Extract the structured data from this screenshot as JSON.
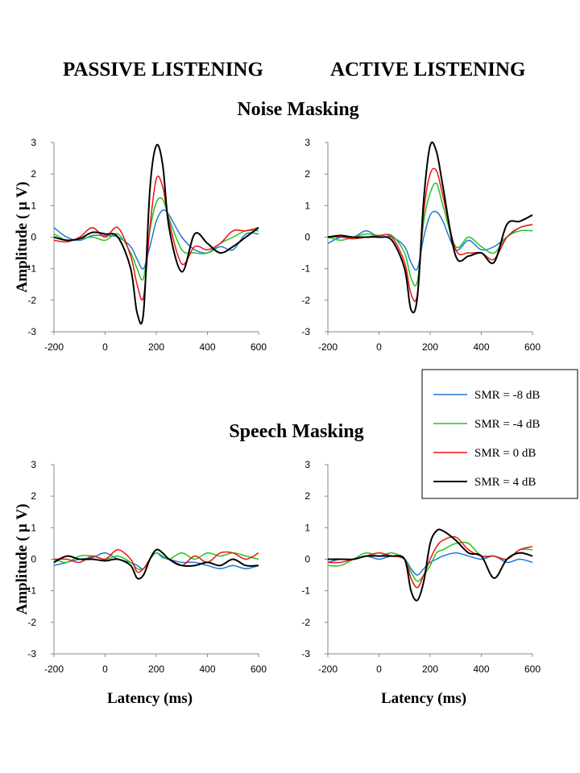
{
  "headings": {
    "passive": "PASSIVE LISTENING",
    "active": "ACTIVE LISTENING",
    "noise": "Noise Masking",
    "speech": "Speech Masking"
  },
  "axis": {
    "ylabel": "Amplitude ( μ V)",
    "xlabel": "Latency (ms)",
    "xticks": [
      -200,
      0,
      200,
      400,
      600
    ],
    "yticks": [
      3,
      2,
      1,
      0,
      -1,
      -2,
      -3
    ],
    "xlim": [
      -200,
      600
    ],
    "ylim": [
      -3,
      3
    ]
  },
  "legend": [
    {
      "label": "SMR = -8 dB",
      "color": "#1f77d4"
    },
    {
      "label": "SMR = -4 dB",
      "color": "#22c422"
    },
    {
      "label": "SMR = 0 dB",
      "color": "#ee1111"
    },
    {
      "label": "SMR = 4 dB",
      "color": "#000000"
    }
  ],
  "chart_data": [
    {
      "type": "line",
      "panel": "passive-noise",
      "x": [
        -200,
        -150,
        -100,
        -50,
        0,
        50,
        100,
        125,
        150,
        175,
        200,
        225,
        250,
        300,
        350,
        400,
        450,
        500,
        550,
        600
      ],
      "series": [
        {
          "name": "SMR = -8 dB",
          "values": [
            0.3,
            0,
            -0.1,
            0.05,
            0.05,
            0,
            -0.3,
            -0.7,
            -1.0,
            -0.3,
            0.5,
            0.85,
            0.7,
            0,
            -0.4,
            -0.5,
            -0.3,
            -0.4,
            0.1,
            0.1
          ]
        },
        {
          "name": "SMR = -4 dB",
          "values": [
            0.1,
            -0.1,
            -0.05,
            0,
            -0.1,
            0.1,
            -0.5,
            -1.0,
            -1.3,
            0.2,
            1.1,
            1.2,
            0.6,
            -0.4,
            -0.5,
            -0.5,
            -0.2,
            0,
            0.2,
            0.2
          ]
        },
        {
          "name": "SMR = 0 dB",
          "values": [
            -0.1,
            -0.15,
            0,
            0.3,
            0,
            0.3,
            -0.6,
            -1.5,
            -1.9,
            0.3,
            1.85,
            1.6,
            0.5,
            -0.85,
            -0.3,
            -0.4,
            -0.2,
            0.2,
            0.2,
            0.3
          ]
        },
        {
          "name": "SMR = 4 dB",
          "values": [
            0,
            -0.1,
            -0.05,
            0.15,
            0.1,
            0,
            -1.0,
            -2.4,
            -2.4,
            1.5,
            2.9,
            2.3,
            0.3,
            -1.1,
            0.1,
            -0.2,
            -0.5,
            -0.3,
            0,
            0.3
          ]
        }
      ]
    },
    {
      "type": "line",
      "panel": "active-noise",
      "x": [
        -200,
        -150,
        -100,
        -50,
        0,
        50,
        100,
        125,
        150,
        175,
        200,
        225,
        250,
        300,
        350,
        400,
        450,
        500,
        550,
        600
      ],
      "series": [
        {
          "name": "SMR = -8 dB",
          "values": [
            -0.2,
            0,
            0,
            0.2,
            0,
            0,
            -0.3,
            -0.8,
            -1.0,
            0,
            0.7,
            0.8,
            0.5,
            -0.4,
            -0.1,
            -0.4,
            -0.3,
            0,
            0.3,
            0.4
          ]
        },
        {
          "name": "SMR = -4 dB",
          "values": [
            0,
            -0.1,
            0,
            0.1,
            0.05,
            0.05,
            -0.5,
            -1.3,
            -1.4,
            0.5,
            1.4,
            1.7,
            1.0,
            -0.3,
            0,
            -0.3,
            -0.5,
            0,
            0.2,
            0.2
          ]
        },
        {
          "name": "SMR = 0 dB",
          "values": [
            0,
            0,
            -0.05,
            0,
            0.05,
            0,
            -0.8,
            -1.8,
            -1.8,
            0.8,
            2.0,
            2.1,
            1.3,
            -0.4,
            -0.5,
            -0.5,
            -0.7,
            0,
            0.3,
            0.4
          ]
        },
        {
          "name": "SMR = 4 dB",
          "values": [
            0,
            0.05,
            0,
            0,
            0,
            -0.1,
            -1.0,
            -2.3,
            -1.9,
            1.2,
            2.9,
            2.7,
            1.6,
            -0.6,
            -0.6,
            -0.5,
            -0.8,
            0.4,
            0.5,
            0.7
          ]
        }
      ]
    },
    {
      "type": "line",
      "panel": "passive-speech",
      "x": [
        -200,
        -150,
        -100,
        -50,
        0,
        50,
        100,
        125,
        150,
        175,
        200,
        225,
        250,
        300,
        350,
        400,
        450,
        500,
        550,
        600
      ],
      "series": [
        {
          "name": "SMR = -8 dB",
          "values": [
            -0.2,
            -0.1,
            0,
            0.05,
            0.2,
            0,
            -0.1,
            -0.2,
            -0.3,
            0,
            0.2,
            0.05,
            0,
            -0.1,
            -0.1,
            -0.2,
            -0.3,
            -0.2,
            -0.3,
            -0.2
          ]
        },
        {
          "name": "SMR = -4 dB",
          "values": [
            0,
            -0.1,
            0.1,
            0.1,
            0,
            0.1,
            -0.1,
            -0.3,
            -0.3,
            0,
            0.2,
            0.1,
            0,
            0.2,
            0,
            0.2,
            0.1,
            0.2,
            0.1,
            0
          ]
        },
        {
          "name": "SMR = 0 dB",
          "values": [
            0,
            0,
            -0.1,
            0.1,
            0,
            0.3,
            0,
            -0.4,
            -0.3,
            0,
            0.3,
            0.2,
            0,
            -0.2,
            0.1,
            -0.1,
            0.2,
            0.2,
            0,
            0.2
          ]
        },
        {
          "name": "SMR = 4 dB",
          "values": [
            -0.1,
            0.1,
            0,
            0,
            -0.05,
            0,
            -0.2,
            -0.6,
            -0.5,
            0,
            0.3,
            0.2,
            0,
            -0.2,
            -0.2,
            -0.1,
            -0.2,
            0,
            -0.2,
            -0.2
          ]
        }
      ]
    },
    {
      "type": "line",
      "panel": "active-speech",
      "x": [
        -200,
        -150,
        -100,
        -50,
        0,
        50,
        100,
        125,
        150,
        175,
        200,
        225,
        250,
        300,
        350,
        400,
        450,
        500,
        550,
        600
      ],
      "series": [
        {
          "name": "SMR = -8 dB",
          "values": [
            -0.1,
            0,
            0,
            0.1,
            0,
            0.1,
            0,
            -0.3,
            -0.5,
            -0.3,
            -0.1,
            0,
            0.1,
            0.2,
            0.1,
            0,
            0.1,
            -0.1,
            0,
            -0.1
          ]
        },
        {
          "name": "SMR = -4 dB",
          "values": [
            -0.2,
            -0.2,
            0,
            0.2,
            0.1,
            0.2,
            0,
            -0.4,
            -0.7,
            -0.5,
            -0.2,
            0.2,
            0.3,
            0.5,
            0.5,
            0.1,
            0.1,
            0,
            0.3,
            0.3
          ]
        },
        {
          "name": "SMR = 0 dB",
          "values": [
            -0.1,
            -0.1,
            0,
            0.1,
            0.2,
            0.1,
            0,
            -0.6,
            -0.9,
            -0.5,
            0,
            0.4,
            0.6,
            0.7,
            0.3,
            0.1,
            0.1,
            0,
            0.3,
            0.4
          ]
        },
        {
          "name": "SMR = 4 dB",
          "values": [
            0,
            0,
            0,
            0.1,
            0.1,
            0.1,
            0,
            -1.0,
            -1.3,
            -0.7,
            0.5,
            0.9,
            0.9,
            0.6,
            0.2,
            0.1,
            -0.6,
            0,
            0.2,
            0.1
          ]
        }
      ]
    }
  ]
}
